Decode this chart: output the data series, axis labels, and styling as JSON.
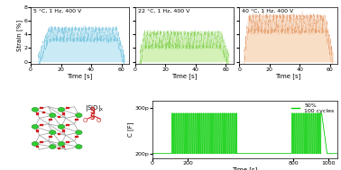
{
  "top_plots": [
    {
      "label": "5 °C, 1 Hz, 400 V",
      "color": "#a8dff0",
      "color_dark": "#5ab8d8",
      "ylim": [
        -0.3,
        8
      ],
      "yticks": [
        0,
        2,
        4,
        6,
        8
      ],
      "rise_start": 5,
      "rise_end": 12,
      "plateau_level": 4.0,
      "plateau_end": 57,
      "drop_end": 62,
      "noise_amp": 0.9,
      "noise_freq": 80
    },
    {
      "label": "22 °C, 1 Hz, 400 V",
      "color": "#b8e88a",
      "color_dark": "#6cc830",
      "ylim": [
        -0.3,
        8
      ],
      "yticks": [
        0,
        2,
        4,
        6,
        8
      ],
      "rise_start": 3,
      "rise_end": 6,
      "plateau_level": 3.2,
      "plateau_end": 57,
      "drop_end": 62,
      "noise_amp": 1.1,
      "noise_freq": 80
    },
    {
      "label": "40 °C, 1 Hz, 400 V",
      "color": "#f5c8a0",
      "color_dark": "#e08040",
      "ylim": [
        -0.3,
        8
      ],
      "yticks": [
        0,
        2,
        4,
        6,
        8
      ],
      "rise_start": 3,
      "rise_end": 6,
      "plateau_level": 5.5,
      "plateau_end": 57,
      "drop_end": 62,
      "noise_amp": 1.2,
      "noise_freq": 80
    }
  ],
  "bottom_right": {
    "color_bright": "#00cc00",
    "ylim": [
      1.9e-10,
      3.15e-10
    ],
    "yticks": [
      2e-10,
      3e-10
    ],
    "ytick_labels": [
      "200p",
      "300p"
    ],
    "xlim": [
      0,
      1050
    ],
    "xticks": [
      0,
      200,
      800,
      1000
    ],
    "baseline": 2e-10,
    "high_val": 2.88e-10,
    "cycle_start": 110,
    "cycle_end_gap_start": 480,
    "cycle_end_gap_end": 790,
    "cycle_end": 960,
    "decay_end": 990,
    "period": 11.0,
    "legend_text": "50%\n100 cycles"
  },
  "strain_ylabel": "Strain [%]",
  "time_xlabel": "Time [s]",
  "c_ylabel": "C [F]",
  "fig_bg": "#ffffff"
}
